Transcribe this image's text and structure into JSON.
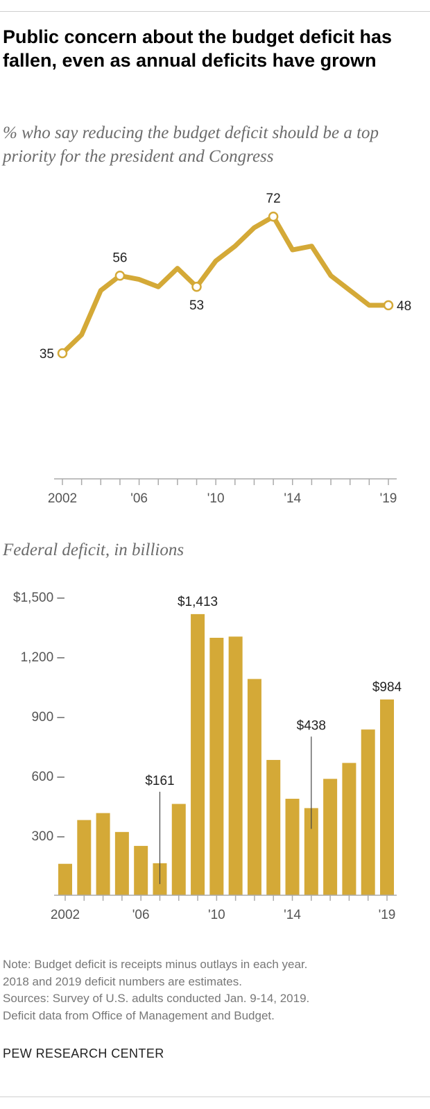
{
  "title": "Public concern about the budget deficit has fallen, even as annual deficits have grown",
  "colors": {
    "series": "#d4a937",
    "axis": "#aaaaaa",
    "text_gray": "#6b6b6b"
  },
  "chart_data": [
    {
      "type": "line",
      "subtitle": "% who say reducing the budget deficit should be a top priority for the president and Congress",
      "x": [
        2002,
        2003,
        2004,
        2005,
        2006,
        2007,
        2008,
        2009,
        2010,
        2011,
        2012,
        2013,
        2014,
        2015,
        2016,
        2017,
        2018,
        2019
      ],
      "values": [
        35,
        40,
        52,
        56,
        55,
        53,
        58,
        53,
        60,
        64,
        69,
        72,
        63,
        64,
        56,
        52,
        48,
        48
      ],
      "labeled_points": [
        {
          "x": 2002,
          "text": "35"
        },
        {
          "x": 2005,
          "text": "56"
        },
        {
          "x": 2009,
          "text": "53"
        },
        {
          "x": 2013,
          "text": "72"
        },
        {
          "x": 2019,
          "text": "48"
        }
      ],
      "x_tick_labels": [
        {
          "x": 2002,
          "text": "2002"
        },
        {
          "x": 2006,
          "text": "'06"
        },
        {
          "x": 2010,
          "text": "'10"
        },
        {
          "x": 2014,
          "text": "'14"
        },
        {
          "x": 2019,
          "text": "'19"
        }
      ],
      "ylim": [
        0,
        100
      ],
      "grid": false
    },
    {
      "type": "bar",
      "subtitle": "Federal deficit, in billions",
      "categories": [
        2002,
        2003,
        2004,
        2005,
        2006,
        2007,
        2008,
        2009,
        2010,
        2011,
        2012,
        2013,
        2014,
        2015,
        2016,
        2017,
        2018,
        2019
      ],
      "values": [
        158,
        378,
        413,
        318,
        248,
        161,
        459,
        1413,
        1294,
        1300,
        1087,
        680,
        485,
        438,
        585,
        665,
        833,
        984
      ],
      "y_tick_labels": [
        {
          "value": 300,
          "text": "300"
        },
        {
          "value": 600,
          "text": "600"
        },
        {
          "value": 900,
          "text": "900"
        },
        {
          "value": 1200,
          "text": "1,200"
        },
        {
          "value": 1500,
          "text": "$1,500"
        }
      ],
      "x_tick_labels": [
        {
          "x": 2002,
          "text": "2002"
        },
        {
          "x": 2006,
          "text": "'06"
        },
        {
          "x": 2010,
          "text": "'10"
        },
        {
          "x": 2014,
          "text": "'14"
        },
        {
          "x": 2019,
          "text": "'19"
        }
      ],
      "labeled_bars": [
        {
          "x": 2007,
          "text": "$161",
          "leader": true
        },
        {
          "x": 2009,
          "text": "$1,413",
          "leader": false
        },
        {
          "x": 2015,
          "text": "$438",
          "leader": true
        },
        {
          "x": 2019,
          "text": "$984",
          "leader": false
        }
      ],
      "ylim": [
        0,
        1500
      ],
      "grid": false
    }
  ],
  "notes": [
    "Note: Budget deficit is receipts minus outlays in each year.",
    "2018 and 2019 deficit numbers are estimates.",
    "Sources: Survey of U.S. adults conducted Jan. 9-14, 2019.",
    "Deficit data from Office of Management and Budget."
  ],
  "source_org": "PEW RESEARCH CENTER"
}
